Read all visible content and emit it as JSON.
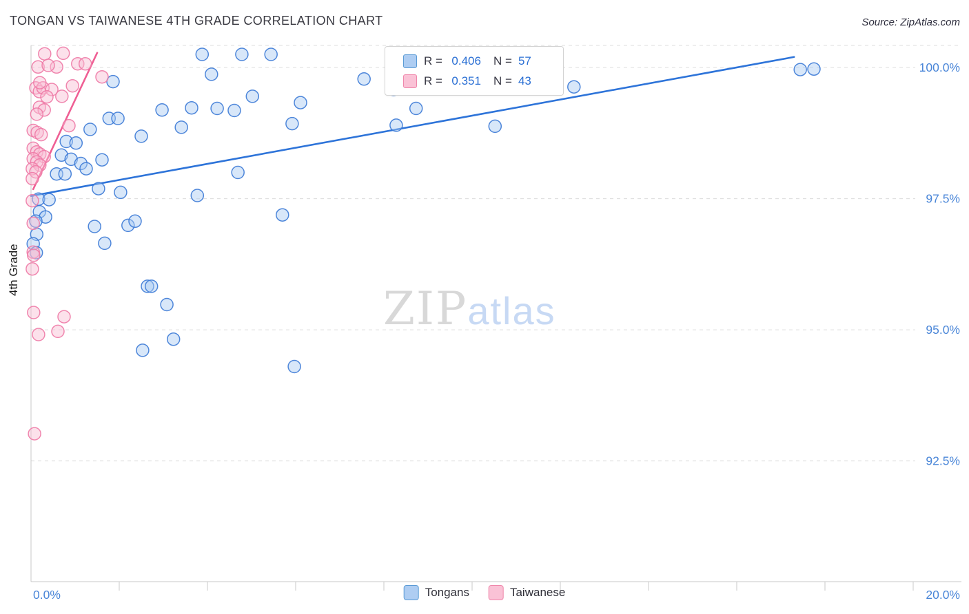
{
  "header": {
    "title": "TONGAN VS TAIWANESE 4TH GRADE CORRELATION CHART",
    "source": "Source: ZipAtlas.com"
  },
  "axes": {
    "y_label": "4th Grade",
    "x_min_label": "0.0%",
    "x_max_label": "20.0%",
    "y_tick_labels": [
      "100.0%",
      "97.5%",
      "95.0%",
      "92.5%"
    ],
    "label_color": "#4a86d8",
    "grid_color": "#dcdcdc",
    "axis_color": "#c9c9c9"
  },
  "legend_box": {
    "rows": [
      {
        "r_label": "R =",
        "r_value": "0.406",
        "n_label": "N =",
        "n_value": "57"
      },
      {
        "r_label": "R =",
        "r_value": "0.351",
        "n_label": "N =",
        "n_value": "43"
      }
    ]
  },
  "bottom_legend": [
    {
      "label": "Tongans",
      "fill": "#aecdf2",
      "border": "#5b9bd5"
    },
    {
      "label": "Taiwanese",
      "fill": "#fac2d6",
      "border": "#ef87ab"
    }
  ],
  "watermark": {
    "zip": "ZIP",
    "atlas": "atlas"
  },
  "chart_data": {
    "type": "scatter",
    "title": "TONGAN VS TAIWANESE 4TH GRADE CORRELATION CHART",
    "ylabel": "4th Grade",
    "xlim": [
      0,
      20
    ],
    "ylim": [
      90.2,
      100.42
    ],
    "x_tick_step": 2,
    "y_gridlines": [
      100.0,
      97.5,
      95.0,
      92.5
    ],
    "grid": true,
    "legend_position": "top-center",
    "series": [
      {
        "name": "Tongans",
        "R": 0.406,
        "N": 57,
        "point_fill": "#a9c9f2",
        "point_stroke": "#3c7ad6",
        "trend_color": "#2e74d9",
        "trend": {
          "x1": 0.0,
          "y1": 97.55,
          "x2": 17.3,
          "y2": 100.2
        },
        "points": [
          [
            3.88,
            100.25
          ],
          [
            4.78,
            100.25
          ],
          [
            5.44,
            100.25
          ],
          [
            4.09,
            99.87
          ],
          [
            1.86,
            99.73
          ],
          [
            7.55,
            99.78
          ],
          [
            8.22,
            99.58
          ],
          [
            12.31,
            99.63
          ],
          [
            17.44,
            99.96
          ],
          [
            17.75,
            99.97
          ],
          [
            5.02,
            99.45
          ],
          [
            6.11,
            99.33
          ],
          [
            2.97,
            99.19
          ],
          [
            3.64,
            99.23
          ],
          [
            4.22,
            99.22
          ],
          [
            4.61,
            99.18
          ],
          [
            8.73,
            99.22
          ],
          [
            5.92,
            98.93
          ],
          [
            3.41,
            98.86
          ],
          [
            8.28,
            98.9
          ],
          [
            10.52,
            98.88
          ],
          [
            1.77,
            99.03
          ],
          [
            1.97,
            99.03
          ],
          [
            1.34,
            98.82
          ],
          [
            2.5,
            98.69
          ],
          [
            0.8,
            98.59
          ],
          [
            1.02,
            98.56
          ],
          [
            0.69,
            98.33
          ],
          [
            0.91,
            98.25
          ],
          [
            1.13,
            98.17
          ],
          [
            1.61,
            98.24
          ],
          [
            1.25,
            98.07
          ],
          [
            4.69,
            98.0
          ],
          [
            1.53,
            97.69
          ],
          [
            2.03,
            97.62
          ],
          [
            3.77,
            97.56
          ],
          [
            0.17,
            97.49
          ],
          [
            0.41,
            97.48
          ],
          [
            0.58,
            97.97
          ],
          [
            0.77,
            97.97
          ],
          [
            0.19,
            97.25
          ],
          [
            0.33,
            97.15
          ],
          [
            5.7,
            97.19
          ],
          [
            0.11,
            97.07
          ],
          [
            1.44,
            96.97
          ],
          [
            2.2,
            96.99
          ],
          [
            2.36,
            97.07
          ],
          [
            0.13,
            96.82
          ],
          [
            1.67,
            96.65
          ],
          [
            0.05,
            96.64
          ],
          [
            2.64,
            95.83
          ],
          [
            2.73,
            95.83
          ],
          [
            3.08,
            95.48
          ],
          [
            3.23,
            94.82
          ],
          [
            2.53,
            94.61
          ],
          [
            5.97,
            94.3
          ],
          [
            0.12,
            96.47
          ]
        ]
      },
      {
        "name": "Taiwanese",
        "R": 0.351,
        "N": 43,
        "point_fill": "#f9bcd3",
        "point_stroke": "#ee7aa6",
        "trend_color": "#ef5f94",
        "trend": {
          "x1": 0.05,
          "y1": 97.68,
          "x2": 1.5,
          "y2": 100.28
        },
        "points": [
          [
            0.16,
            100.01
          ],
          [
            0.31,
            100.26
          ],
          [
            0.73,
            100.27
          ],
          [
            0.58,
            100.01
          ],
          [
            1.06,
            100.07
          ],
          [
            1.23,
            100.07
          ],
          [
            1.61,
            99.82
          ],
          [
            0.11,
            99.61
          ],
          [
            0.19,
            99.54
          ],
          [
            0.27,
            99.61
          ],
          [
            0.47,
            99.58
          ],
          [
            0.36,
            99.44
          ],
          [
            0.19,
            99.24
          ],
          [
            0.3,
            99.19
          ],
          [
            0.13,
            99.11
          ],
          [
            0.05,
            98.8
          ],
          [
            0.14,
            98.76
          ],
          [
            0.23,
            98.72
          ],
          [
            0.86,
            98.89
          ],
          [
            0.05,
            98.46
          ],
          [
            0.13,
            98.39
          ],
          [
            0.2,
            98.35
          ],
          [
            0.3,
            98.3
          ],
          [
            0.05,
            98.26
          ],
          [
            0.13,
            98.2
          ],
          [
            0.2,
            98.14
          ],
          [
            0.03,
            98.07
          ],
          [
            0.11,
            98.01
          ],
          [
            0.03,
            97.88
          ],
          [
            0.03,
            97.46
          ],
          [
            0.05,
            97.03
          ],
          [
            0.05,
            96.48
          ],
          [
            0.06,
            96.42
          ],
          [
            0.03,
            96.16
          ],
          [
            0.06,
            95.33
          ],
          [
            0.75,
            95.25
          ],
          [
            0.17,
            94.91
          ],
          [
            0.61,
            94.97
          ],
          [
            0.08,
            93.02
          ],
          [
            0.2,
            99.71
          ],
          [
            0.39,
            100.04
          ],
          [
            0.7,
            99.45
          ],
          [
            0.94,
            99.65
          ]
        ]
      }
    ]
  }
}
